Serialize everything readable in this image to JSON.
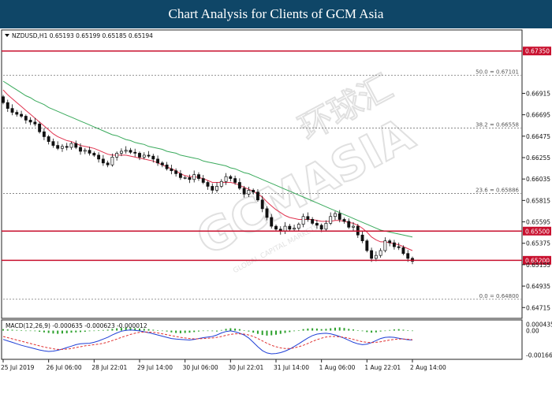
{
  "page": {
    "banner_title": "Chart Analysis for Clients of GCM Asia"
  },
  "watermark": {
    "text": "GCMASIA",
    "cjk": "环球汇",
    "subtext": "GLOBAL CAPITAL MARKETS"
  },
  "chart_data": [
    {
      "type": "candlestick",
      "panel": "price",
      "symbol_info": "NZDUSD,H1  0.65193 0.65199 0.65185 0.65194",
      "y_ticks": [
        "0.66915",
        "0.66695",
        "0.66475",
        "0.66255",
        "0.66035",
        "0.65815",
        "0.65595",
        "0.65375",
        "0.65155",
        "0.64935",
        "0.64715"
      ],
      "x_labels": [
        "25 Jul 2019",
        "26 Jul 06:00",
        "28 Jul 22:01",
        "29 Jul 14:00",
        "30 Jul 06:00",
        "30 Jul 22:01",
        "31 Jul 14:00",
        "1 Aug 06:00",
        "1 Aug 22:01",
        "2 Aug 14:00"
      ],
      "ylim": [
        0.6462,
        0.6755
      ],
      "levels": [
        {
          "label": "0.67350",
          "value": 0.6735,
          "style": "resistance"
        },
        {
          "label": "0.65500",
          "value": 0.655,
          "style": "resistance"
        },
        {
          "label": "0.65200",
          "value": 0.652,
          "style": "support"
        }
      ],
      "fib_levels": [
        {
          "label": "50.0 = 0.67101",
          "value": 0.67101
        },
        {
          "label": "38.2 = 0.66558",
          "value": 0.66558
        },
        {
          "label": "23.6 = 0.65886",
          "value": 0.65886
        },
        {
          "label": "0.0 = 0.64800",
          "value": 0.648
        }
      ],
      "close_series": [
        0.6682,
        0.6676,
        0.6672,
        0.667,
        0.6668,
        0.6664,
        0.6662,
        0.666,
        0.6652,
        0.6647,
        0.6642,
        0.6638,
        0.6635,
        0.6637,
        0.6636,
        0.664,
        0.6636,
        0.6632,
        0.6633,
        0.663,
        0.6628,
        0.6624,
        0.662,
        0.6618,
        0.6626,
        0.663,
        0.6632,
        0.6633,
        0.6631,
        0.663,
        0.6626,
        0.6628,
        0.6627,
        0.6624,
        0.662,
        0.6618,
        0.6614,
        0.6612,
        0.6609,
        0.6605,
        0.6605,
        0.6603,
        0.6608,
        0.6604,
        0.66,
        0.6596,
        0.6592,
        0.6596,
        0.6601,
        0.6606,
        0.6604,
        0.66,
        0.6594,
        0.6588,
        0.6592,
        0.659,
        0.6582,
        0.6573,
        0.6564,
        0.6555,
        0.6552,
        0.655,
        0.6555,
        0.6552,
        0.6553,
        0.6557,
        0.6565,
        0.6562,
        0.6558,
        0.6556,
        0.6552,
        0.6558,
        0.6565,
        0.6568,
        0.6562,
        0.656,
        0.6554,
        0.6555,
        0.6546,
        0.654,
        0.653,
        0.6522,
        0.6525,
        0.653,
        0.654,
        0.6538,
        0.6534,
        0.6533,
        0.6527,
        0.6522,
        0.6519
      ],
      "ma_fast": [
        0.6695,
        0.669,
        0.6686,
        0.6682,
        0.6678,
        0.6674,
        0.667,
        0.6666,
        0.6662,
        0.6658,
        0.6654,
        0.665,
        0.6647,
        0.6645,
        0.6643,
        0.6642,
        0.664,
        0.6638,
        0.6637,
        0.6636,
        0.6635,
        0.6633,
        0.6631,
        0.6629,
        0.6628,
        0.6628,
        0.6628,
        0.6628,
        0.6627,
        0.6626,
        0.6625,
        0.6624,
        0.6623,
        0.6622,
        0.662,
        0.6618,
        0.6616,
        0.6614,
        0.6612,
        0.6609,
        0.6607,
        0.6606,
        0.6606,
        0.6605,
        0.6604,
        0.6602,
        0.66,
        0.66,
        0.66,
        0.66,
        0.66,
        0.6599,
        0.6597,
        0.6595,
        0.6593,
        0.6591,
        0.6588,
        0.6585,
        0.658,
        0.6576,
        0.6572,
        0.6569,
        0.6566,
        0.6564,
        0.6563,
        0.6562,
        0.6562,
        0.6562,
        0.6562,
        0.6561,
        0.656,
        0.656,
        0.656,
        0.6561,
        0.6561,
        0.656,
        0.6559,
        0.6558,
        0.6556,
        0.6553,
        0.6549,
        0.6544,
        0.6541,
        0.6539,
        0.6539,
        0.6538,
        0.6537,
        0.6536,
        0.6534,
        0.6532,
        0.653
      ],
      "ma_slow": [
        0.6704,
        0.6701,
        0.6698,
        0.6695,
        0.6692,
        0.6689,
        0.6687,
        0.6684,
        0.6682,
        0.668,
        0.6677,
        0.6675,
        0.6673,
        0.6671,
        0.6669,
        0.6667,
        0.6665,
        0.6663,
        0.6661,
        0.6659,
        0.6657,
        0.6655,
        0.6653,
        0.6651,
        0.6649,
        0.6648,
        0.6646,
        0.6644,
        0.6643,
        0.6641,
        0.664,
        0.6639,
        0.6637,
        0.6636,
        0.6635,
        0.6634,
        0.6632,
        0.6631,
        0.663,
        0.6628,
        0.6627,
        0.6626,
        0.6625,
        0.6624,
        0.6622,
        0.6621,
        0.662,
        0.6619,
        0.6618,
        0.6617,
        0.6615,
        0.6614,
        0.6612,
        0.661,
        0.6609,
        0.6607,
        0.6605,
        0.6603,
        0.6601,
        0.6599,
        0.6597,
        0.6595,
        0.6593,
        0.6591,
        0.6589,
        0.6587,
        0.6585,
        0.6583,
        0.6581,
        0.6579,
        0.6577,
        0.6575,
        0.6573,
        0.6571,
        0.6569,
        0.6567,
        0.6565,
        0.6563,
        0.6561,
        0.6559,
        0.6557,
        0.6555,
        0.6553,
        0.6551,
        0.655,
        0.6549,
        0.6548,
        0.6547,
        0.6546,
        0.6545,
        0.6544
      ],
      "colors": {
        "level_line": "#c8102e",
        "level_box": "#c8102e",
        "ma_fast": "#e0334f",
        "ma_slow": "#3aaa5c",
        "candle": "#111111",
        "fib": "#777777"
      }
    },
    {
      "type": "macd",
      "panel": "indicator",
      "label": "MACD(12,26,9) -0.000635 -0.000623 -0.000012",
      "y_ticks": [
        "0.000435",
        "0.00",
        "-0.001661"
      ],
      "ylim": [
        -0.00185,
        0.00062
      ],
      "histogram": [
        0.0001,
        8e-05,
        6e-05,
        4e-05,
        2e-05,
        0.0,
        -2e-05,
        -4e-05,
        -8e-05,
        -0.00012,
        -0.00016,
        -0.0002,
        -0.00022,
        -0.0002,
        -0.00018,
        -0.00014,
        -0.00012,
        -0.0001,
        -8e-05,
        -4e-05,
        -2e-05,
        2e-05,
        4e-05,
        6e-05,
        0.00012,
        0.00016,
        0.00018,
        0.0002,
        0.00018,
        0.00016,
        0.00014,
        0.00012,
        0.0001,
        6e-05,
        3e-05,
        -2e-05,
        -6e-05,
        -0.00012,
        -0.00016,
        -0.00018,
        -0.00016,
        -0.00014,
        -0.0001,
        -6e-05,
        -3e-05,
        -2e-05,
        -4e-05,
        -6e-05,
        4e-05,
        0.00012,
        0.00016,
        0.00014,
        0.0001,
        2e-05,
        -6e-05,
        -0.00014,
        -0.00022,
        -0.0003,
        -0.00034,
        -0.00032,
        -0.00028,
        -0.00022,
        -0.00016,
        -0.0001,
        -4e-05,
        2e-05,
        0.0001,
        0.00014,
        0.00016,
        0.00014,
        0.0001,
        0.00012,
        0.00016,
        0.0002,
        0.00022,
        0.00018,
        0.00012,
        8e-05,
        2e-05,
        -4e-05,
        -0.0001,
        -0.00014,
        -0.00012,
        -6e-05,
        0.0,
        4e-05,
        8e-05,
        0.0001,
        6e-05,
        2e-05,
        -1e-05
      ],
      "macd_line": [
        -0.0006,
        -0.0007,
        -0.0008,
        -0.0009,
        -0.001,
        -0.00108,
        -0.00116,
        -0.00124,
        -0.00132,
        -0.00138,
        -0.00142,
        -0.0014,
        -0.00134,
        -0.00126,
        -0.00116,
        -0.00106,
        -0.00096,
        -0.0009,
        -0.00088,
        -0.00086,
        -0.0008,
        -0.0007,
        -0.00058,
        -0.00046,
        -0.0003,
        -0.00016,
        -4e-05,
        2e-05,
        4e-05,
        2e-05,
        -2e-05,
        -8e-05,
        -0.00014,
        -0.00022,
        -0.0003,
        -0.00038,
        -0.00046,
        -0.00054,
        -0.00058,
        -0.0006,
        -0.00062,
        -0.00064,
        -0.0006,
        -0.00054,
        -0.00048,
        -0.00044,
        -0.0004,
        -0.0003,
        -0.00016,
        -6e-05,
        -2e-05,
        -8e-05,
        -0.00018,
        -0.0003,
        -0.0005,
        -0.0008,
        -0.0011,
        -0.00136,
        -0.00152,
        -0.00158,
        -0.00156,
        -0.0015,
        -0.0014,
        -0.00126,
        -0.00108,
        -0.0009,
        -0.0007,
        -0.0005,
        -0.00034,
        -0.00024,
        -0.0002,
        -0.00018,
        -0.00022,
        -0.0003,
        -0.0004,
        -0.00052,
        -0.00066,
        -0.0008,
        -0.0009,
        -0.00096,
        -0.00092,
        -0.00082,
        -0.00068,
        -0.00054,
        -0.00046,
        -0.00044,
        -0.00046,
        -0.00052,
        -0.00058,
        -0.00062,
        -0.00064
      ],
      "signal_line": [
        -0.0004,
        -0.00048,
        -0.00056,
        -0.00064,
        -0.00072,
        -0.0008,
        -0.00088,
        -0.00096,
        -0.00104,
        -0.00112,
        -0.00118,
        -0.00124,
        -0.00128,
        -0.00128,
        -0.00126,
        -0.00122,
        -0.00116,
        -0.0011,
        -0.00104,
        -0.001,
        -0.00096,
        -0.00092,
        -0.00086,
        -0.00078,
        -0.00068,
        -0.00058,
        -0.00046,
        -0.00036,
        -0.00026,
        -0.00018,
        -0.00012,
        -0.0001,
        -0.0001,
        -0.00012,
        -0.00016,
        -0.00022,
        -0.00028,
        -0.00034,
        -0.0004,
        -0.00046,
        -0.0005,
        -0.00054,
        -0.00056,
        -0.00056,
        -0.00054,
        -0.00052,
        -0.0005,
        -0.00046,
        -0.0004,
        -0.00032,
        -0.00026,
        -0.00022,
        -0.00022,
        -0.00024,
        -0.0003,
        -0.0004,
        -0.00054,
        -0.0007,
        -0.00086,
        -0.001,
        -0.0011,
        -0.00118,
        -0.00122,
        -0.00122,
        -0.00118,
        -0.0011,
        -0.001,
        -0.00088,
        -0.00074,
        -0.00062,
        -0.00052,
        -0.00044,
        -0.0004,
        -0.0004,
        -0.00042,
        -0.00046,
        -0.00052,
        -0.0006,
        -0.00068,
        -0.00076,
        -0.0008,
        -0.00082,
        -0.0008,
        -0.00076,
        -0.0007,
        -0.00064,
        -0.0006,
        -0.00058,
        -0.00058,
        -0.00059,
        -0.00062
      ],
      "colors": {
        "histogram": "#2ca02c",
        "macd_line": "#1f3fd6",
        "signal_line": "#e03030"
      }
    }
  ]
}
